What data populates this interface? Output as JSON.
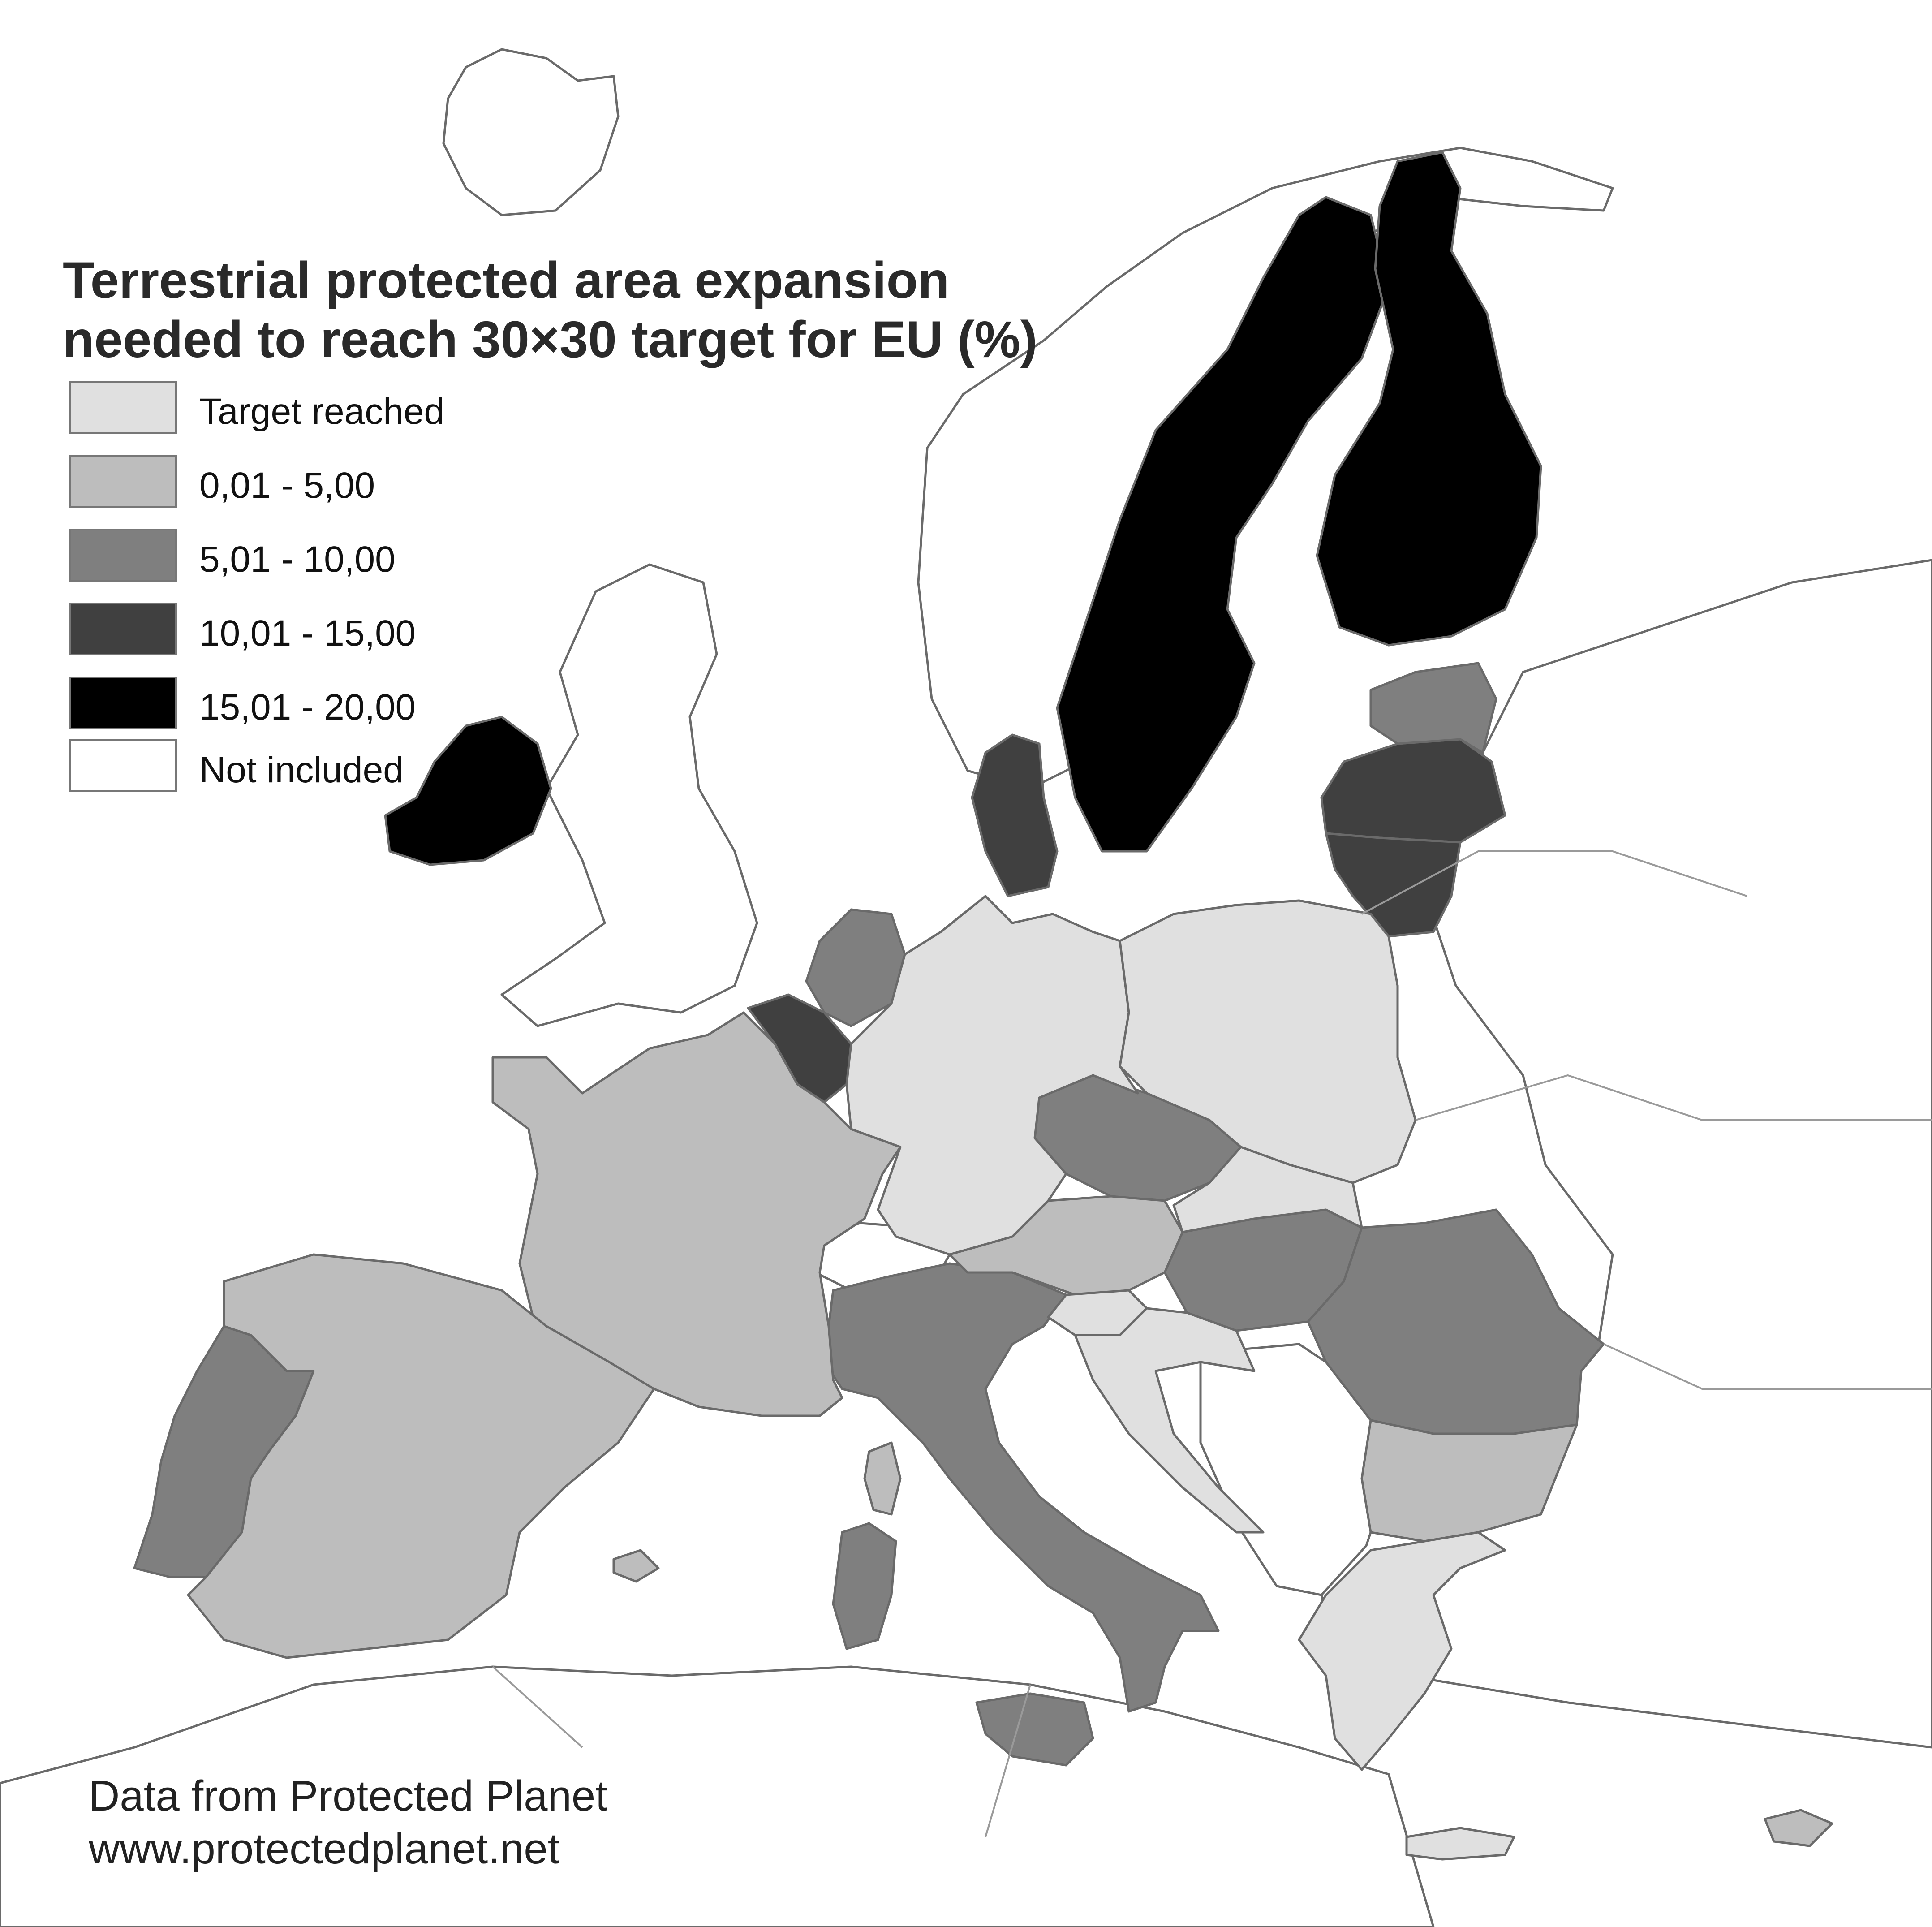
{
  "title": {
    "line1": "Terrestrial protected area expansion",
    "line2": "needed to reach 30×30 target for EU (%)"
  },
  "legend": {
    "items": [
      {
        "label": "Target reached",
        "color": "#e0e0e0"
      },
      {
        "label": "0,01 - 5,00",
        "color": "#bdbdbd"
      },
      {
        "label": "5,01 - 10,00",
        "color": "#7f7f7f"
      },
      {
        "label": "10,01 - 15,00",
        "color": "#404040"
      },
      {
        "label": "15,01 - 20,00",
        "color": "#000000"
      },
      {
        "label": "Not included",
        "color": "#ffffff"
      }
    ]
  },
  "source": {
    "line1": "Data from Protected Planet",
    "line2": "www.protectedplanet.net"
  },
  "colors": {
    "border": "#6a6a6a",
    "background": "#ffffff"
  }
}
